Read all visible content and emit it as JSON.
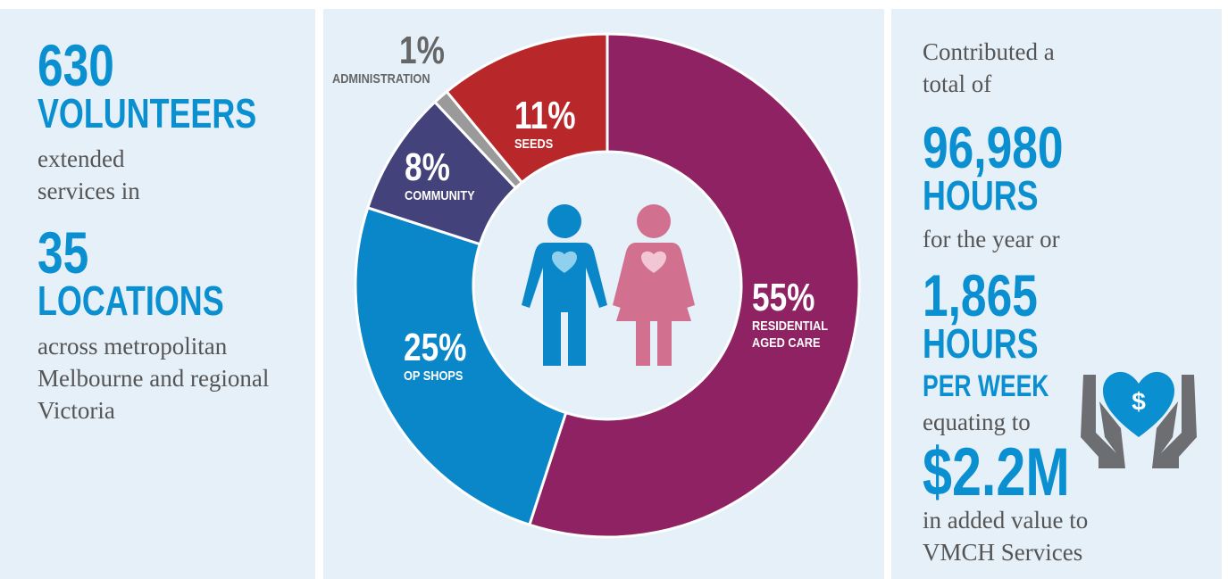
{
  "chart_data": {
    "type": "donut",
    "categories": [
      "RESIDENTIAL AGED CARE",
      "OP SHOPS",
      "COMMUNITY",
      "ADMINISTRATION",
      "SEEDS"
    ],
    "values": [
      55,
      25,
      8,
      1,
      11
    ],
    "value_labels": [
      "55%",
      "25%",
      "8%",
      "1%",
      "11%"
    ],
    "colors": [
      "#8e2262",
      "#0a87c9",
      "#43427a",
      "#9a9a9a",
      "#b8282b"
    ]
  },
  "left": {
    "volunteers_number": "630",
    "volunteers_label": "VOLUNTEERS",
    "text1": "extended services in",
    "locations_number": "35",
    "locations_label": "LOCATIONS",
    "text2": "across metropolitan Melbourne and regional Victoria"
  },
  "right": {
    "text1": "Contributed a total of",
    "hours_number": "96,980",
    "hours_label": "HOURS",
    "text2": "for the year or",
    "weekly_number": "1,865",
    "weekly_label": "HOURS",
    "weekly_sub": "PER WEEK",
    "text3": "equating to",
    "value_number": "$2.2M",
    "text4": "in added value to VMCH Services",
    "icon_label": "$"
  }
}
